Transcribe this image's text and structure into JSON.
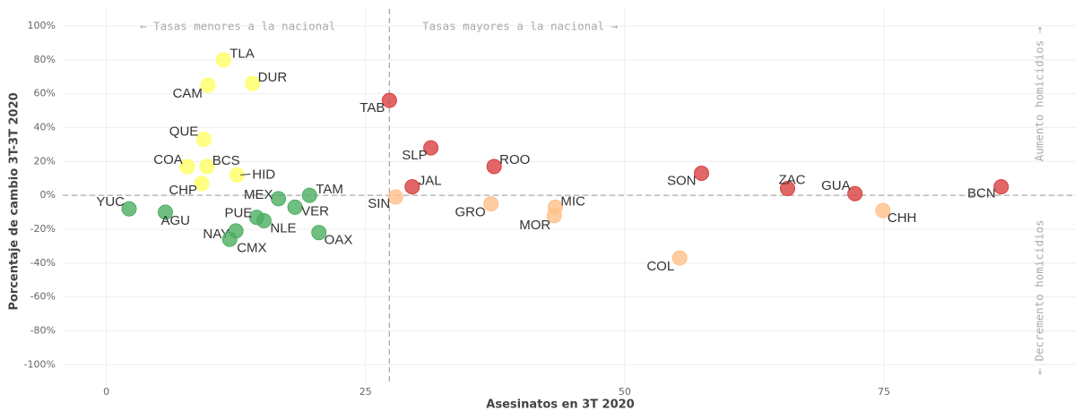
{
  "chart_data": {
    "type": "scatter",
    "xlabel": "Asesinatos en 3T 2020",
    "ylabel": "Porcentaje de cambio 3T-3T 2020",
    "annotations": [
      "← Tasas menores a la nacional",
      "Tasas mayores a la nacional →",
      "Aumento homicidios →",
      "← Decremento homicidios"
    ],
    "point_labels": [
      "YUC",
      "AGU",
      "CHP",
      "COA",
      "BCS",
      "QUE",
      "CAM",
      "TLA",
      "DUR",
      "HID",
      "NAY",
      "CMX",
      "PUE",
      "NLE",
      "MEX",
      "VER",
      "TAM",
      "OAX",
      "TAB",
      "SIN",
      "JAL",
      "SLP",
      "GRO",
      "ROO",
      "MIC",
      "MOR",
      "COL",
      "SON",
      "ZAC",
      "GUA",
      "CHH",
      "BCN"
    ],
    "x": [
      2.2,
      5.7,
      9.2,
      7.8,
      9.7,
      9.4,
      9.8,
      11.3,
      14.1,
      12.6,
      12.5,
      11.9,
      14.5,
      15.2,
      16.6,
      18.2,
      19.6,
      20.5,
      27.3,
      27.9,
      29.5,
      31.3,
      37.1,
      37.4,
      43.3,
      43.2,
      55.3,
      57.4,
      65.7,
      72.2,
      74.9,
      86.3
    ],
    "values": [
      -8,
      -10,
      7,
      17,
      17,
      33,
      65,
      80,
      66,
      12,
      -21,
      -26,
      -13,
      -15,
      -2,
      -7,
      0,
      -22,
      56,
      -1,
      5,
      28,
      -5,
      17,
      -7,
      -12,
      -37,
      13,
      4,
      1,
      -9,
      5
    ],
    "colors": [
      "#4caf60",
      "#4caf60",
      "#ffff66",
      "#ffff66",
      "#ffff66",
      "#ffff66",
      "#ffff66",
      "#ffff66",
      "#ffff66",
      "#ffff66",
      "#4caf60",
      "#4caf60",
      "#4caf60",
      "#4caf60",
      "#4caf60",
      "#4caf60",
      "#4caf60",
      "#4caf60",
      "#d94040",
      "#ffc08a",
      "#d94040",
      "#d94040",
      "#ffc08a",
      "#d94040",
      "#ffc08a",
      "#ffc08a",
      "#ffc08a",
      "#d94040",
      "#d94040",
      "#d94040",
      "#ffc08a",
      "#d94040"
    ],
    "ref_x": 27.3,
    "ref_y": 0,
    "xlim": [
      -4.2,
      93.5
    ],
    "ylim": [
      -112,
      110
    ],
    "xticks": [
      0,
      25,
      50,
      75
    ],
    "yticks": [
      {
        "value": 100,
        "label": "100%"
      },
      {
        "value": 80,
        "label": "80%"
      },
      {
        "value": 60,
        "label": "60%"
      },
      {
        "value": 40,
        "label": "40%"
      },
      {
        "value": 20,
        "label": "20%"
      },
      {
        "value": 0,
        "label": "0%"
      },
      {
        "value": -20,
        "label": "-20%"
      },
      {
        "value": -40,
        "label": "-40%"
      },
      {
        "value": -60,
        "label": "-60%"
      },
      {
        "value": -80,
        "label": "-80%"
      },
      {
        "value": -100,
        "label": "-100%"
      }
    ],
    "grid": true
  }
}
